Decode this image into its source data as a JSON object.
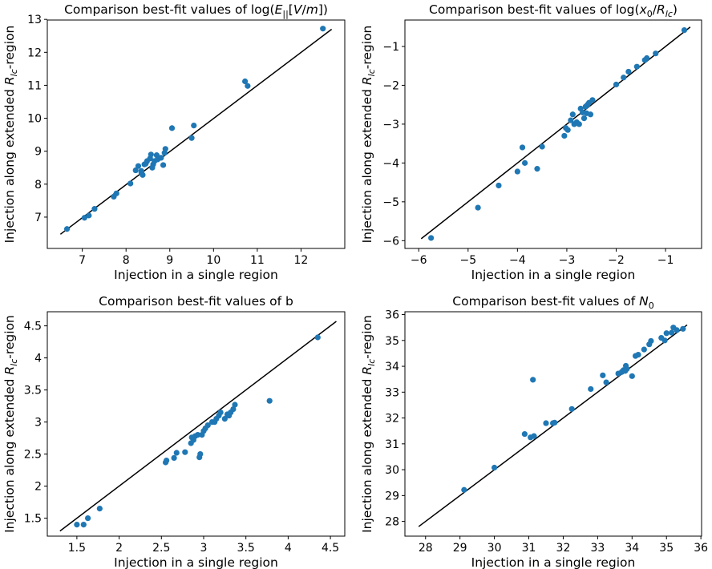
{
  "chart_data": [
    {
      "type": "scatter",
      "title_parts": [
        [
          "Comparison best-fit values of log(",
          "n"
        ],
        [
          "E",
          "i"
        ],
        [
          "||",
          "sub"
        ],
        [
          "[",
          "n"
        ],
        [
          "V",
          "i"
        ],
        [
          "/",
          "n"
        ],
        [
          "m",
          "i"
        ],
        [
          "])",
          "n"
        ]
      ],
      "xlabel": "Injection in a single region",
      "ylabel_parts": [
        [
          "Injection along extended ",
          "n"
        ],
        [
          "R",
          "i"
        ],
        [
          "lc",
          "isub"
        ],
        [
          "-region",
          "n"
        ]
      ],
      "xlim": [
        6.2,
        13.0
      ],
      "ylim": [
        6.05,
        12.98
      ],
      "xticks": [
        7,
        8,
        9,
        10,
        11,
        12
      ],
      "yticks": [
        7,
        8,
        9,
        10,
        11,
        12,
        13
      ],
      "line": [
        [
          6.5,
          6.48
        ],
        [
          12.7,
          12.7
        ]
      ],
      "points": [
        [
          6.65,
          6.64
        ],
        [
          7.05,
          6.98
        ],
        [
          7.15,
          7.05
        ],
        [
          7.28,
          7.25
        ],
        [
          7.72,
          7.62
        ],
        [
          7.78,
          7.72
        ],
        [
          8.1,
          8.02
        ],
        [
          8.22,
          8.42
        ],
        [
          8.28,
          8.55
        ],
        [
          8.35,
          8.35
        ],
        [
          8.35,
          8.4
        ],
        [
          8.38,
          8.28
        ],
        [
          8.42,
          8.6
        ],
        [
          8.45,
          8.62
        ],
        [
          8.48,
          8.7
        ],
        [
          8.55,
          8.78
        ],
        [
          8.57,
          8.9
        ],
        [
          8.6,
          8.5
        ],
        [
          8.62,
          8.6
        ],
        [
          8.65,
          8.7
        ],
        [
          8.7,
          8.88
        ],
        [
          8.72,
          8.75
        ],
        [
          8.8,
          8.8
        ],
        [
          8.85,
          8.58
        ],
        [
          8.88,
          8.95
        ],
        [
          8.9,
          9.07
        ],
        [
          9.05,
          9.7
        ],
        [
          9.5,
          9.4
        ],
        [
          9.55,
          9.78
        ],
        [
          10.72,
          11.12
        ],
        [
          10.78,
          10.98
        ],
        [
          12.5,
          12.72
        ]
      ]
    },
    {
      "type": "scatter",
      "title_parts": [
        [
          "Comparison best-fit values of log(",
          "n"
        ],
        [
          "x",
          "i"
        ],
        [
          "0",
          "sub"
        ],
        [
          "/",
          "n"
        ],
        [
          "R",
          "i"
        ],
        [
          "lc",
          "isub"
        ],
        [
          ")",
          "n"
        ]
      ],
      "xlabel": "Injection in a single region",
      "ylabel_parts": [
        [
          "Injection along extended ",
          "n"
        ],
        [
          "R",
          "i"
        ],
        [
          "lc",
          "isub"
        ],
        [
          "-region",
          "n"
        ]
      ],
      "xlim": [
        -6.28,
        -0.27
      ],
      "ylim": [
        -6.2,
        -0.32
      ],
      "xticks": [
        -6,
        -5,
        -4,
        -3,
        -2,
        -1
      ],
      "yticks": [
        -6,
        -5,
        -4,
        -3,
        -2,
        -1
      ],
      "line": [
        [
          -5.95,
          -5.95
        ],
        [
          -0.5,
          -0.5
        ]
      ],
      "points": [
        [
          -5.75,
          -5.93
        ],
        [
          -4.8,
          -5.15
        ],
        [
          -4.38,
          -4.58
        ],
        [
          -4.0,
          -4.22
        ],
        [
          -3.9,
          -3.6
        ],
        [
          -3.85,
          -4.0
        ],
        [
          -3.6,
          -4.15
        ],
        [
          -3.5,
          -3.58
        ],
        [
          -3.05,
          -3.3
        ],
        [
          -3.02,
          -3.1
        ],
        [
          -2.98,
          -3.15
        ],
        [
          -2.92,
          -2.9
        ],
        [
          -2.88,
          -2.75
        ],
        [
          -2.85,
          -3.0
        ],
        [
          -2.8,
          -2.95
        ],
        [
          -2.75,
          -3.0
        ],
        [
          -2.72,
          -2.6
        ],
        [
          -2.68,
          -2.7
        ],
        [
          -2.65,
          -2.85
        ],
        [
          -2.62,
          -2.55
        ],
        [
          -2.6,
          -2.72
        ],
        [
          -2.58,
          -2.5
        ],
        [
          -2.55,
          -2.45
        ],
        [
          -2.52,
          -2.75
        ],
        [
          -2.48,
          -2.38
        ],
        [
          -2.0,
          -1.98
        ],
        [
          -1.85,
          -1.8
        ],
        [
          -1.75,
          -1.65
        ],
        [
          -1.58,
          -1.52
        ],
        [
          -1.42,
          -1.35
        ],
        [
          -1.38,
          -1.3
        ],
        [
          -1.2,
          -1.18
        ],
        [
          -0.62,
          -0.58
        ]
      ]
    },
    {
      "type": "scatter",
      "title_parts": [
        [
          "Comparison best-fit values of b",
          "n"
        ]
      ],
      "xlabel": "Injection in a single region",
      "ylabel_parts": [
        [
          "Injection along extended ",
          "n"
        ],
        [
          "R",
          "i"
        ],
        [
          "lc",
          "isub"
        ],
        [
          "-region",
          "n"
        ]
      ],
      "xlim": [
        1.15,
        4.67
      ],
      "ylim": [
        1.22,
        4.72
      ],
      "xticks": [
        1.5,
        2.0,
        2.5,
        3.0,
        3.5,
        4.0,
        4.5
      ],
      "yticks": [
        1.5,
        2.0,
        2.5,
        3.0,
        3.5,
        4.0,
        4.5
      ],
      "line": [
        [
          1.3,
          1.3
        ],
        [
          4.57,
          4.57
        ]
      ],
      "points": [
        [
          1.5,
          1.4
        ],
        [
          1.58,
          1.4
        ],
        [
          1.63,
          1.5
        ],
        [
          1.77,
          1.65
        ],
        [
          2.55,
          2.37
        ],
        [
          2.56,
          2.4
        ],
        [
          2.65,
          2.44
        ],
        [
          2.68,
          2.52
        ],
        [
          2.78,
          2.53
        ],
        [
          2.85,
          2.67
        ],
        [
          2.86,
          2.76
        ],
        [
          2.88,
          2.72
        ],
        [
          2.9,
          2.78
        ],
        [
          2.93,
          2.8
        ],
        [
          2.95,
          2.45
        ],
        [
          2.96,
          2.5
        ],
        [
          2.98,
          2.8
        ],
        [
          3.0,
          2.86
        ],
        [
          3.02,
          2.9
        ],
        [
          3.05,
          2.95
        ],
        [
          3.1,
          3.0
        ],
        [
          3.13,
          3.0
        ],
        [
          3.15,
          3.05
        ],
        [
          3.18,
          3.1
        ],
        [
          3.2,
          3.15
        ],
        [
          3.25,
          3.05
        ],
        [
          3.28,
          3.12
        ],
        [
          3.3,
          3.1
        ],
        [
          3.32,
          3.15
        ],
        [
          3.35,
          3.2
        ],
        [
          3.37,
          3.27
        ],
        [
          3.78,
          3.33
        ],
        [
          4.35,
          4.32
        ]
      ]
    },
    {
      "type": "scatter",
      "title_parts": [
        [
          "Comparison best-fit values of ",
          "n"
        ],
        [
          "N",
          "i"
        ],
        [
          "0",
          "sub"
        ]
      ],
      "xlabel": "Injection in a single region",
      "ylabel_parts": [
        [
          "Injection along extended ",
          "n"
        ],
        [
          "R",
          "i"
        ],
        [
          "lc",
          "isub"
        ],
        [
          "-region",
          "n"
        ]
      ],
      "xlim": [
        27.4,
        36.02
      ],
      "ylim": [
        27.43,
        36.11
      ],
      "xticks": [
        28,
        29,
        30,
        31,
        32,
        33,
        34,
        35,
        36
      ],
      "yticks": [
        28,
        29,
        30,
        31,
        32,
        33,
        34,
        35,
        36
      ],
      "line": [
        [
          27.8,
          27.8
        ],
        [
          35.6,
          35.6
        ]
      ],
      "points": [
        [
          29.12,
          29.22
        ],
        [
          30.0,
          30.08
        ],
        [
          30.88,
          31.38
        ],
        [
          31.05,
          31.25
        ],
        [
          31.12,
          33.48
        ],
        [
          31.15,
          31.3
        ],
        [
          31.5,
          31.8
        ],
        [
          31.7,
          31.8
        ],
        [
          31.75,
          31.82
        ],
        [
          32.25,
          32.35
        ],
        [
          32.8,
          33.12
        ],
        [
          33.15,
          33.65
        ],
        [
          33.25,
          33.38
        ],
        [
          33.6,
          33.72
        ],
        [
          33.7,
          33.78
        ],
        [
          33.75,
          33.85
        ],
        [
          33.8,
          33.82
        ],
        [
          33.82,
          34.02
        ],
        [
          33.85,
          33.9
        ],
        [
          34.0,
          33.62
        ],
        [
          34.1,
          34.4
        ],
        [
          34.18,
          34.45
        ],
        [
          34.35,
          34.65
        ],
        [
          34.5,
          34.85
        ],
        [
          34.55,
          34.98
        ],
        [
          34.85,
          35.1
        ],
        [
          34.95,
          35.0
        ],
        [
          35.0,
          35.28
        ],
        [
          35.15,
          35.3
        ],
        [
          35.2,
          35.5
        ],
        [
          35.3,
          35.4
        ],
        [
          35.48,
          35.45
        ]
      ]
    }
  ],
  "colors": {
    "point": "#1f77b4",
    "line": "#000000"
  }
}
